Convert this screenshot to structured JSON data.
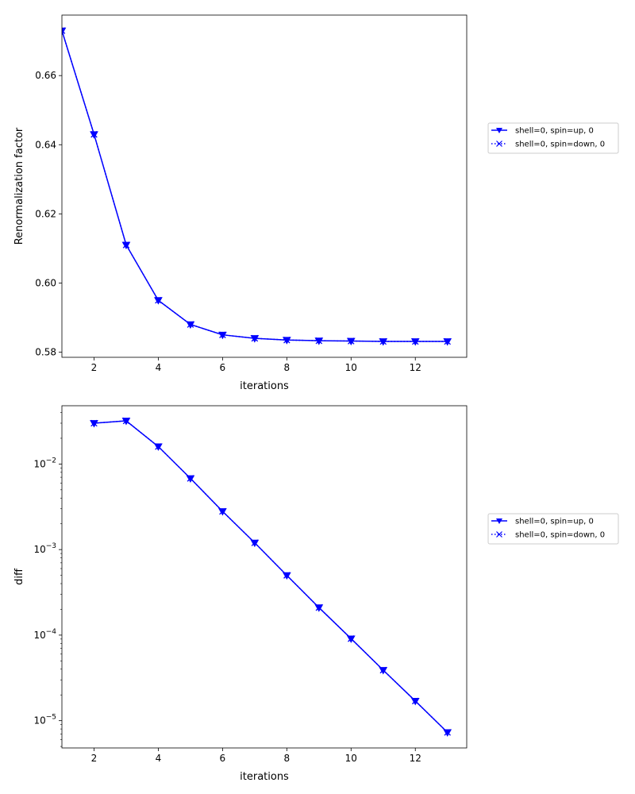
{
  "chart_data": [
    {
      "type": "line",
      "xlabel": "iterations",
      "ylabel": "Renormalization factor",
      "xlim": [
        1,
        13.6
      ],
      "ylim": [
        0.5785,
        0.6775
      ],
      "yscale": "linear",
      "xticks": [
        2,
        4,
        6,
        8,
        10,
        12
      ],
      "yticks": [
        0.58,
        0.6,
        0.62,
        0.64,
        0.66
      ],
      "ytick_labels": [
        "0.58",
        "0.60",
        "0.62",
        "0.64",
        "0.66"
      ],
      "legend_position": "outside-top-right",
      "x": [
        1,
        2,
        3,
        4,
        5,
        6,
        7,
        8,
        9,
        10,
        11,
        12,
        13
      ],
      "series": [
        {
          "name": "shell=0, spin=up, 0",
          "color": "#0000ff",
          "linestyle": "solid",
          "marker": "triangle-down",
          "values": [
            0.673,
            0.643,
            0.611,
            0.595,
            0.588,
            0.585,
            0.584,
            0.5835,
            0.5833,
            0.5832,
            0.5831,
            0.5831,
            0.5831
          ]
        },
        {
          "name": "shell=0, spin=down, 0",
          "color": "#0000ff",
          "linestyle": "dotted",
          "marker": "x",
          "values": [
            0.673,
            0.643,
            0.611,
            0.595,
            0.588,
            0.585,
            0.584,
            0.5835,
            0.5833,
            0.5832,
            0.5831,
            0.5831,
            0.5831
          ]
        }
      ]
    },
    {
      "type": "line",
      "xlabel": "iterations",
      "ylabel": "diff",
      "xlim": [
        1,
        13.6
      ],
      "ylim": [
        4.8e-06,
        0.048
      ],
      "yscale": "log",
      "xticks": [
        2,
        4,
        6,
        8,
        10,
        12
      ],
      "yticks": [
        1e-05,
        0.0001,
        0.001,
        0.01
      ],
      "ytick_labels": [
        [
          "10",
          "−5"
        ],
        [
          "10",
          "−4"
        ],
        [
          "10",
          "−3"
        ],
        [
          "10",
          "−2"
        ]
      ],
      "legend_position": "outside-top-right",
      "x": [
        2,
        3,
        4,
        5,
        6,
        7,
        8,
        9,
        10,
        11,
        12,
        13
      ],
      "series": [
        {
          "name": "shell=0, spin=up, 0",
          "color": "#0000ff",
          "linestyle": "solid",
          "marker": "triangle-down",
          "values": [
            0.03,
            0.032,
            0.016,
            0.0068,
            0.0028,
            0.0012,
            0.0005,
            0.00021,
            9.1e-05,
            3.9e-05,
            1.7e-05,
            7.3e-06
          ]
        },
        {
          "name": "shell=0, spin=down, 0",
          "color": "#0000ff",
          "linestyle": "dotted",
          "marker": "x",
          "values": [
            0.03,
            0.032,
            0.016,
            0.0068,
            0.0028,
            0.0012,
            0.0005,
            0.00021,
            9.1e-05,
            3.9e-05,
            1.7e-05,
            7.3e-06
          ]
        }
      ]
    }
  ]
}
